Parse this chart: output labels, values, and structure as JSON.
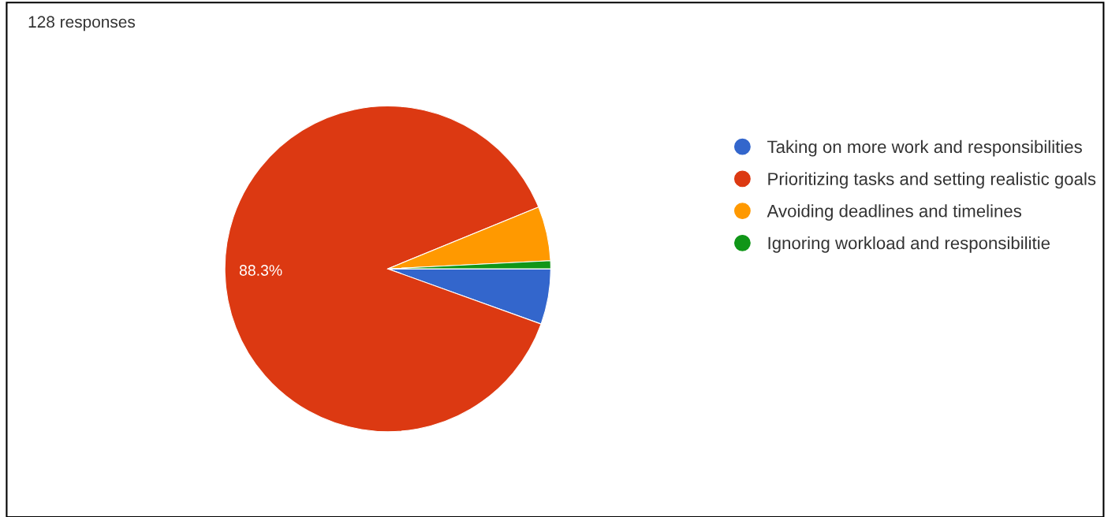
{
  "chart_data": {
    "type": "pie",
    "title": "128 responses",
    "categories": [
      "Taking on more work and responsibilities",
      "Prioritizing tasks and setting realistic goals",
      "Avoiding deadlines and timelines",
      "Ignoring workload and responsibilitie"
    ],
    "values": [
      5.5,
      88.3,
      5.4,
      0.8
    ],
    "colors": [
      "#3366cc",
      "#dc3912",
      "#ff9900",
      "#109618"
    ],
    "value_labels": [
      null,
      "88.3%",
      null,
      null
    ],
    "legend": "right"
  }
}
